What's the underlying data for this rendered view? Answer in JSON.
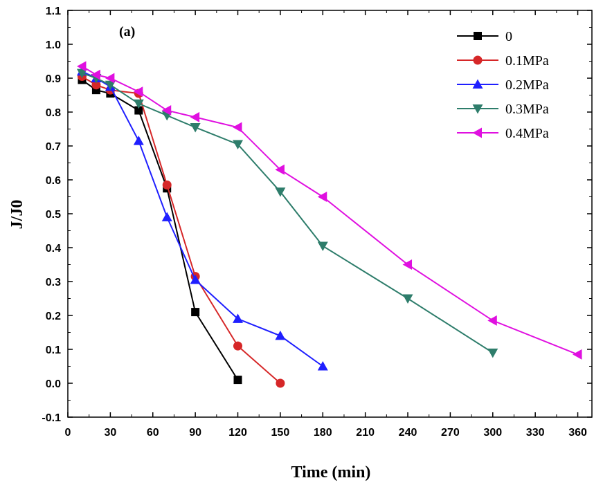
{
  "chart_data": {
    "type": "line",
    "panel_label": "(a)",
    "xlabel": "Time (min)",
    "ylabel": "J/J0",
    "xlim": [
      0,
      370
    ],
    "ylim": [
      -0.1,
      1.1
    ],
    "xticks": [
      "0",
      "30",
      "60",
      "90",
      "120",
      "150",
      "180",
      "210",
      "240",
      "270",
      "300",
      "330",
      "360"
    ],
    "yticks": [
      "-0.1",
      "0.0",
      "0.1",
      "0.2",
      "0.3",
      "0.4",
      "0.5",
      "0.6",
      "0.7",
      "0.8",
      "0.9",
      "1.0",
      "1.1"
    ],
    "grid": false,
    "legend_position": "top-right",
    "series": [
      {
        "name": "0",
        "color": "#000000",
        "marker": "square",
        "x": [
          10,
          20,
          30,
          50,
          70,
          90,
          120
        ],
        "y": [
          0.895,
          0.865,
          0.855,
          0.805,
          0.575,
          0.21,
          0.01
        ]
      },
      {
        "name": "0.1MPa",
        "color": "#d62728",
        "marker": "circle",
        "x": [
          10,
          20,
          30,
          50,
          70,
          90,
          120,
          150
        ],
        "y": [
          0.905,
          0.88,
          0.865,
          0.855,
          0.585,
          0.315,
          0.11,
          0.0
        ]
      },
      {
        "name": "0.2MPa",
        "color": "#1f1fff",
        "marker": "triangle-up",
        "x": [
          10,
          20,
          30,
          50,
          70,
          90,
          120,
          150,
          180
        ],
        "y": [
          0.92,
          0.9,
          0.875,
          0.715,
          0.49,
          0.305,
          0.19,
          0.14,
          0.05
        ]
      },
      {
        "name": "0.3MPa",
        "color": "#2e7d6b",
        "marker": "triangle-down",
        "x": [
          10,
          20,
          30,
          50,
          70,
          90,
          120,
          150,
          180,
          240,
          300
        ],
        "y": [
          0.915,
          0.9,
          0.88,
          0.825,
          0.79,
          0.755,
          0.705,
          0.565,
          0.405,
          0.25,
          0.09
        ]
      },
      {
        "name": "0.4MPa",
        "color": "#e010e0",
        "marker": "triangle-left",
        "x": [
          10,
          20,
          30,
          50,
          70,
          90,
          120,
          150,
          180,
          240,
          300,
          360
        ],
        "y": [
          0.935,
          0.91,
          0.9,
          0.86,
          0.805,
          0.785,
          0.755,
          0.63,
          0.55,
          0.35,
          0.185,
          0.085
        ]
      }
    ]
  }
}
